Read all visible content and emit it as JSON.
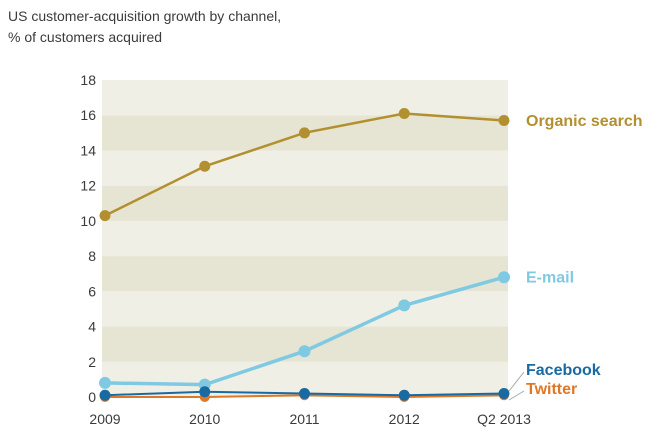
{
  "title": {
    "line1": "US customer-acquisition growth by channel,",
    "line2": "% of customers acquired"
  },
  "chart_data": {
    "type": "line",
    "title": "US customer-acquisition growth by channel, % of customers acquired",
    "categories": [
      "2009",
      "2010",
      "2011",
      "2012",
      "Q2 2013"
    ],
    "series": [
      {
        "name": "Organic search",
        "color": "#B3902F",
        "values": [
          10.3,
          13.1,
          15.0,
          16.1,
          15.7
        ]
      },
      {
        "name": "E-mail",
        "color": "#7FC9E2",
        "values": [
          0.8,
          0.7,
          2.6,
          5.2,
          6.8
        ]
      },
      {
        "name": "Facebook",
        "color": "#1A6AA2",
        "values": [
          0.1,
          0.3,
          0.2,
          0.1,
          0.2
        ]
      },
      {
        "name": "Twitter",
        "color": "#DE7826",
        "values": [
          0.0,
          0.0,
          0.1,
          0.0,
          0.1
        ]
      }
    ],
    "xlabel": "",
    "ylabel": "",
    "ylim": [
      0,
      18
    ],
    "y_ticks": [
      0,
      2,
      4,
      6,
      8,
      10,
      12,
      14,
      16,
      18
    ],
    "grid": "horizontal-bands",
    "band_colors": {
      "light": "#F0EFE6",
      "dark": "#E6E4D2"
    },
    "leader_line_color": "#A8A8A8",
    "legend_position": "labels-at-line-ends-right"
  }
}
